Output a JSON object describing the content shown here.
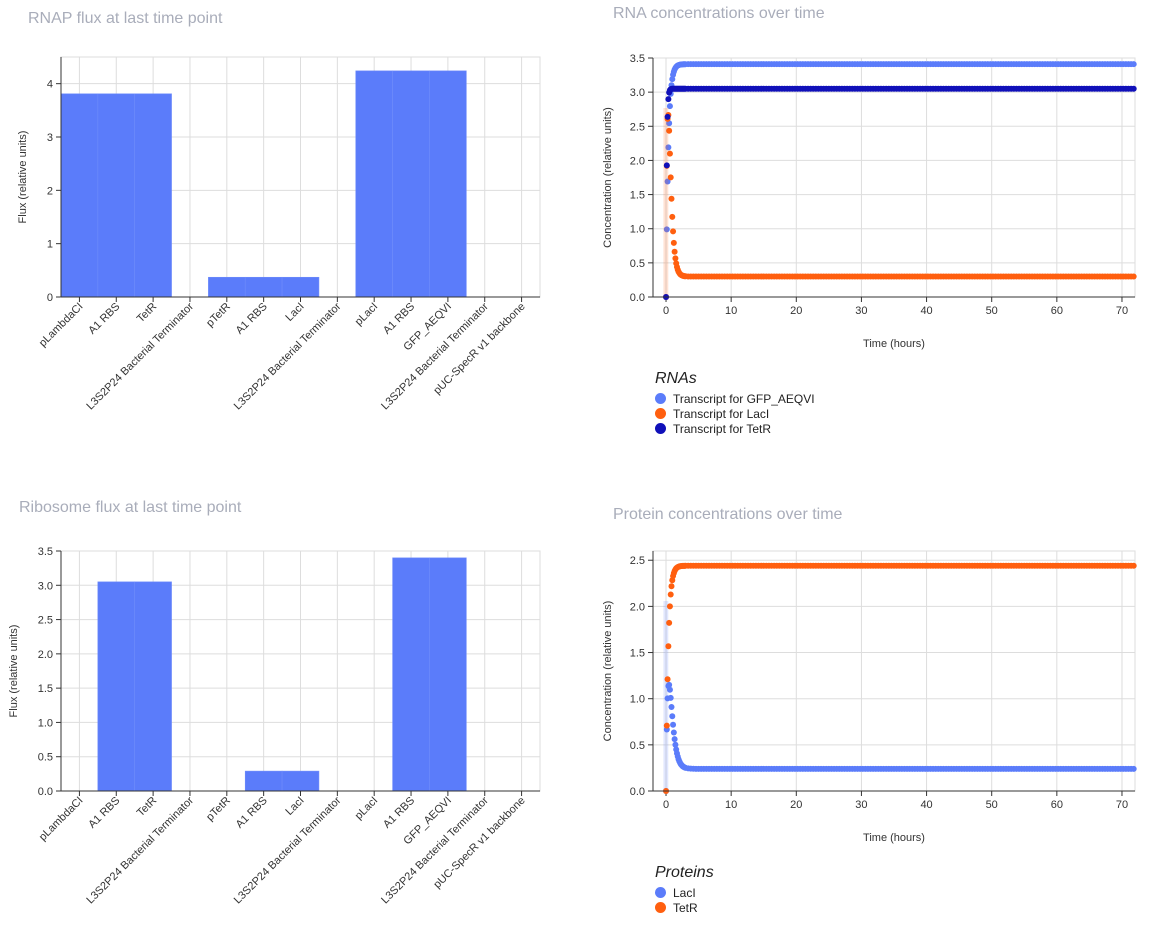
{
  "colors": {
    "bar": "#5b7cfa",
    "series_blue": "#5b7cfa",
    "series_orange": "#ff5f0f",
    "series_navy": "#1010b9",
    "title": "#a9adba",
    "grid": "#dddddd"
  },
  "chart_data": [
    {
      "id": "rnap",
      "type": "bar",
      "title": "RNAP flux at last time point",
      "ylabel": "Flux (relative units)",
      "xlabel": "",
      "ylim": [
        0,
        4.5
      ],
      "yticks": [
        "0",
        "1",
        "2",
        "3",
        "4"
      ],
      "categories": [
        "pLambdaCI",
        "A1 RBS",
        "TetR",
        "L3S2P24 Bacterial Terminator",
        "pTetR",
        "A1 RBS",
        "LacI",
        "L3S2P24 Bacterial Terminator",
        "pLacI",
        "A1 RBS",
        "GFP_AEQVI",
        "L3S2P24 Bacterial Terminator",
        "pUC-SpecR v1 backbone"
      ],
      "values": [
        3.81,
        3.81,
        3.81,
        0,
        0.37,
        0.37,
        0.37,
        0,
        4.24,
        4.24,
        4.24,
        0,
        0
      ],
      "grid": true
    },
    {
      "id": "ribo",
      "type": "bar",
      "title": "Ribosome flux at last time point",
      "ylabel": "Flux (relative units)",
      "xlabel": "",
      "ylim": [
        0,
        3.5
      ],
      "yticks": [
        "0.0",
        "0.5",
        "1.0",
        "1.5",
        "2.0",
        "2.5",
        "3.0",
        "3.5"
      ],
      "categories": [
        "pLambdaCI",
        "A1 RBS",
        "TetR",
        "L3S2P24 Bacterial Terminator",
        "pTetR",
        "A1 RBS",
        "LacI",
        "L3S2P24 Bacterial Terminator",
        "pLacI",
        "A1 RBS",
        "GFP_AEQVI",
        "L3S2P24 Bacterial Terminator",
        "pUC-SpecR v1 backbone"
      ],
      "values": [
        0,
        3.05,
        3.05,
        0,
        0,
        0.29,
        0.29,
        0,
        0,
        3.4,
        3.4,
        0,
        0
      ],
      "grid": true
    },
    {
      "id": "rna",
      "type": "scatter",
      "title": "RNA concentrations over time",
      "xlabel": "Time (hours)",
      "ylabel": "Concentration (relative units)",
      "xlim": [
        -2,
        72
      ],
      "ylim": [
        0,
        3.5
      ],
      "xticks": [
        "0",
        "10",
        "20",
        "30",
        "40",
        "50",
        "60",
        "70"
      ],
      "yticks": [
        "0.0",
        "0.5",
        "1.0",
        "1.5",
        "2.0",
        "2.5",
        "3.0",
        "3.5"
      ],
      "legend_title": "RNAs",
      "legend_position": "bottom-left",
      "grid": true,
      "series": [
        {
          "name": "Transcript for GFP_AEQVI",
          "color": "#5b7cfa",
          "initial": 0,
          "final": 3.41,
          "tau": 0.35,
          "overshoot": 0
        },
        {
          "name": "Transcript for LacI",
          "color": "#ff5f0f",
          "initial": 0,
          "final": 0.3,
          "tau": 0.3,
          "overshoot": 2.5
        },
        {
          "name": "Transcript for TetR",
          "color": "#1010b9",
          "initial": 0,
          "final": 3.05,
          "tau": 0.12,
          "overshoot": 0
        }
      ]
    },
    {
      "id": "protein",
      "type": "scatter",
      "title": "Protein concentrations over time",
      "xlabel": "Time (hours)",
      "ylabel": "Concentration (relative units)",
      "xlim": [
        -2,
        72
      ],
      "ylim": [
        0,
        2.6
      ],
      "xticks": [
        "0",
        "10",
        "20",
        "30",
        "40",
        "50",
        "60",
        "70"
      ],
      "yticks": [
        "0.0",
        "0.5",
        "1.0",
        "1.5",
        "2.0",
        "2.5"
      ],
      "legend_title": "Proteins",
      "legend_position": "bottom-left",
      "grid": true,
      "series": [
        {
          "name": "LacI",
          "color": "#5b7cfa",
          "initial": 0,
          "final": 0.24,
          "tau": 0.4,
          "overshoot": 1.0
        },
        {
          "name": "TetR",
          "color": "#ff5f0f",
          "initial": 0,
          "final": 2.44,
          "tau": 0.35,
          "overshoot": 0
        }
      ]
    }
  ]
}
